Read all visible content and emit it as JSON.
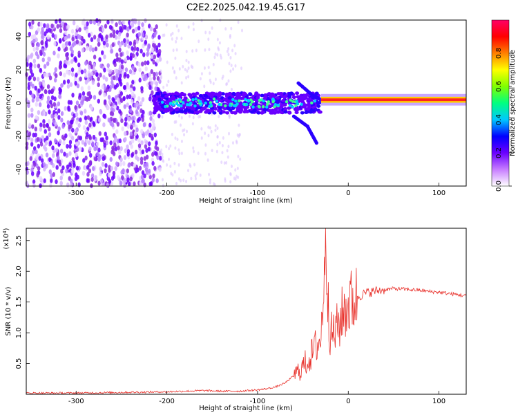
{
  "chart_data": [
    {
      "type": "heatmap",
      "title": "C2E2.2025.042.19.45.G17",
      "xlabel": "Height of straight line (km)",
      "ylabel": "Frequency (Hz)",
      "xlim": [
        -355,
        130
      ],
      "ylim": [
        -50,
        50
      ],
      "xticks": [
        "-300",
        "-200",
        "-100",
        "0",
        "100"
      ],
      "yticks": [
        "40",
        "20",
        "0",
        "-20",
        "-40"
      ],
      "colorbar": {
        "label": "Normalized spectral amplitude",
        "ticks": [
          "0.0",
          "0.2",
          "0.4",
          "0.6",
          "0.8"
        ],
        "range": [
          0,
          1
        ],
        "colors": [
          "#ffffff",
          "#c77dff",
          "#6a00ff",
          "#0000ff",
          "#00c8ff",
          "#00ff80",
          "#80ff00",
          "#ffff00",
          "#ff8000",
          "#ff0000",
          "#ff0066"
        ]
      },
      "description_points": {
        "carrier_line": {
          "x_from": -30,
          "x_to": 130,
          "frequency": 2
        },
        "branch_upper": [
          [
            -55,
            12
          ],
          [
            -40,
            5
          ],
          [
            -30,
            2
          ]
        ],
        "branch_lower": [
          [
            -60,
            -8
          ],
          [
            -45,
            -14
          ],
          [
            -35,
            -24
          ]
        ]
      }
    },
    {
      "type": "line",
      "xlabel": "Height of straight line (km)",
      "ylabel": "SNR (10 * v/v)",
      "yscale_label": "(x10",
      "yscale_exp": "4",
      "xlim": [
        -355,
        130
      ],
      "ylim": [
        0,
        2.7
      ],
      "xticks": [
        "-300",
        "-200",
        "-100",
        "0",
        "100"
      ],
      "yticks": [
        "0.5",
        "1.0",
        "1.5",
        "2.0",
        "2.5"
      ],
      "series": [
        {
          "color": "#e8302a",
          "x": [
            -355,
            -300,
            -250,
            -200,
            -180,
            -160,
            -140,
            -120,
            -100,
            -90,
            -80,
            -70,
            -60,
            -50,
            -45,
            -40,
            -35,
            -30,
            -27,
            -25,
            -22,
            -20,
            -15,
            -10,
            -5,
            0,
            5,
            10,
            15,
            20,
            30,
            40,
            50,
            60,
            70,
            80,
            90,
            100,
            110,
            120,
            130
          ],
          "y": [
            0.02,
            0.02,
            0.03,
            0.04,
            0.05,
            0.06,
            0.05,
            0.05,
            0.07,
            0.09,
            0.12,
            0.18,
            0.3,
            0.45,
            0.55,
            0.65,
            0.8,
            0.9,
            1.9,
            2.7,
            1.6,
            0.95,
            1.0,
            1.15,
            1.35,
            1.45,
            1.52,
            1.58,
            1.62,
            1.65,
            1.68,
            1.7,
            1.72,
            1.71,
            1.7,
            1.69,
            1.67,
            1.66,
            1.64,
            1.62,
            1.6
          ]
        }
      ]
    }
  ]
}
